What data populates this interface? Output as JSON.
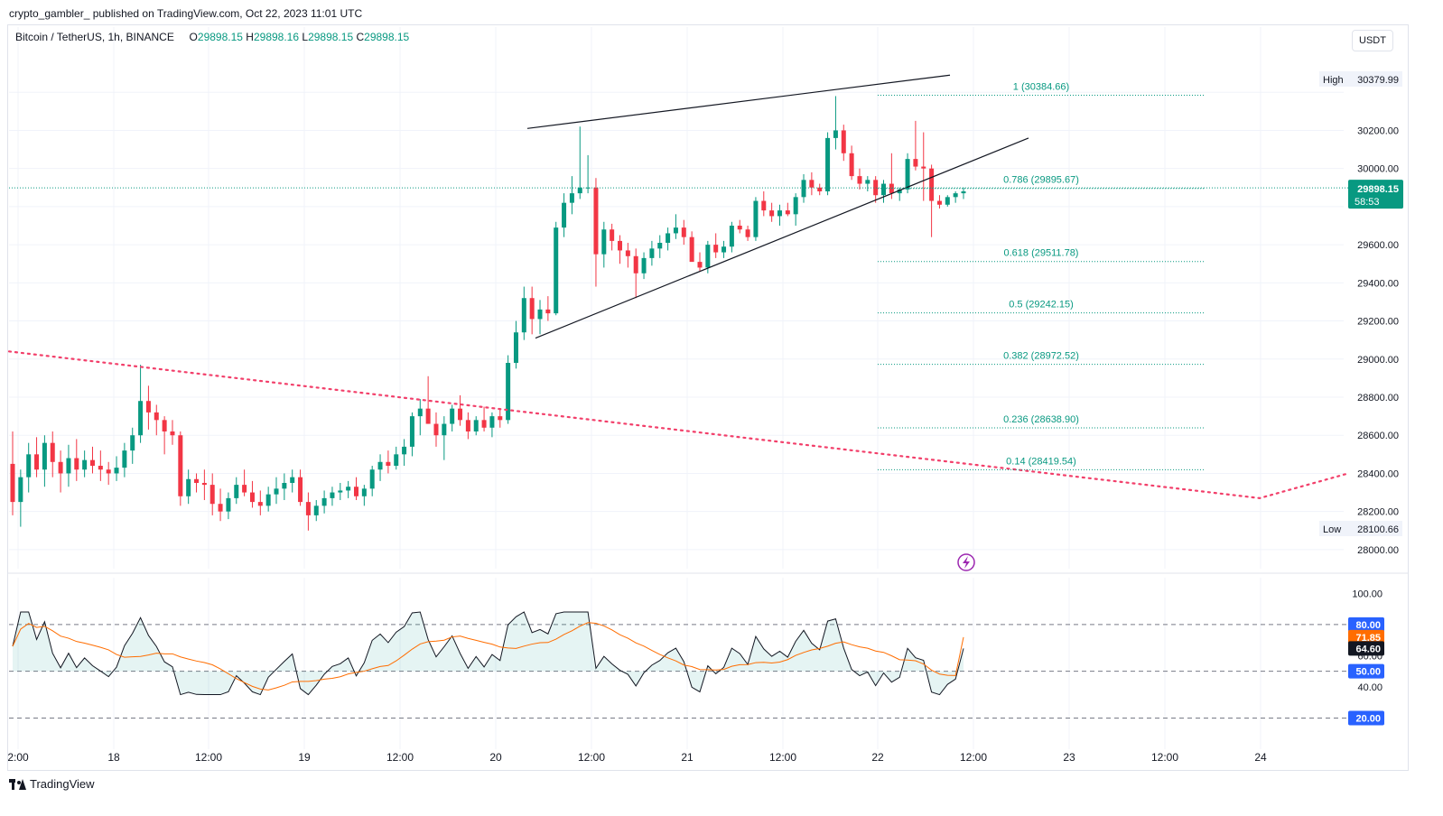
{
  "caption": "crypto_gambler_ published on TradingView.com, Oct 22, 2023 11:01 UTC",
  "symbol_text": "Bitcoin / TetherUS, 1h, BINANCE",
  "ohlc": {
    "o_label": "O",
    "o": "29898.15",
    "h_label": "H",
    "h": "29898.16",
    "l_label": "L",
    "l": "29898.15",
    "c_label": "C",
    "c": "29898.15"
  },
  "currency": "USDT",
  "footer_logo_text": "TradingView",
  "colors": {
    "up": "#089981",
    "down": "#f23645",
    "fib": "#089981",
    "rsi": "#131722",
    "rsi_ma": "#ff6d00",
    "dotted": "#f23f6a",
    "axis_text": "#131722",
    "grid": "#f0f3fa"
  },
  "chart_data": {
    "type": "candlestick",
    "price_axis": {
      "ylim": [
        27900,
        30600
      ],
      "ticks": [
        "28000.00",
        "28200.00",
        "28400.00",
        "28600.00",
        "28800.00",
        "29000.00",
        "29200.00",
        "29400.00",
        "29600.00",
        "30000.00",
        "30200.00"
      ]
    },
    "time_axis": {
      "labels": [
        "2:00",
        "18",
        "12:00",
        "19",
        "12:00",
        "20",
        "12:00",
        "21",
        "12:00",
        "22",
        "12:00",
        "23",
        "12:00",
        "24"
      ]
    },
    "high_label": {
      "label": "High",
      "value": "30379.99"
    },
    "low_label": {
      "label": "Low",
      "value": "28100.66"
    },
    "last_price": {
      "value": "29898.15",
      "countdown": "58:53"
    },
    "fibonacci": [
      {
        "label": "1 (30384.66)",
        "price": 30384.66
      },
      {
        "label": "0.786 (29895.67)",
        "price": 29895.67
      },
      {
        "label": "0.618 (29511.78)",
        "price": 29511.78
      },
      {
        "label": "0.5 (29242.15)",
        "price": 29242.15
      },
      {
        "label": "0.382 (28972.52)",
        "price": 28972.52
      },
      {
        "label": "0.236 (28638.90)",
        "price": 28638.9
      },
      {
        "label": "0.14 (28419.54)",
        "price": 28419.54
      }
    ],
    "candles_ohlc": [
      [
        28450,
        28620,
        28180,
        28250
      ],
      [
        28250,
        28420,
        28120,
        28380
      ],
      [
        28380,
        28560,
        28300,
        28500
      ],
      [
        28500,
        28590,
        28380,
        28420
      ],
      [
        28420,
        28600,
        28330,
        28560
      ],
      [
        28560,
        28620,
        28380,
        28460
      ],
      [
        28460,
        28520,
        28300,
        28400
      ],
      [
        28400,
        28550,
        28330,
        28480
      ],
      [
        28480,
        28580,
        28360,
        28420
      ],
      [
        28420,
        28520,
        28380,
        28470
      ],
      [
        28470,
        28540,
        28400,
        28440
      ],
      [
        28440,
        28520,
        28360,
        28420
      ],
      [
        28420,
        28460,
        28340,
        28400
      ],
      [
        28400,
        28490,
        28360,
        28430
      ],
      [
        28430,
        28560,
        28380,
        28520
      ],
      [
        28520,
        28640,
        28450,
        28600
      ],
      [
        28600,
        28970,
        28560,
        28780
      ],
      [
        28780,
        28860,
        28630,
        28720
      ],
      [
        28720,
        28760,
        28600,
        28680
      ],
      [
        28680,
        28700,
        28500,
        28620
      ],
      [
        28620,
        28680,
        28550,
        28600
      ],
      [
        28600,
        28620,
        28230,
        28280
      ],
      [
        28280,
        28420,
        28240,
        28370
      ],
      [
        28370,
        28400,
        28300,
        28350
      ],
      [
        28350,
        28420,
        28260,
        28340
      ],
      [
        28340,
        28400,
        28180,
        28240
      ],
      [
        28240,
        28320,
        28150,
        28200
      ],
      [
        28200,
        28300,
        28160,
        28270
      ],
      [
        28270,
        28380,
        28240,
        28340
      ],
      [
        28340,
        28420,
        28280,
        28300
      ],
      [
        28300,
        28360,
        28220,
        28250
      ],
      [
        28250,
        28310,
        28180,
        28230
      ],
      [
        28230,
        28330,
        28200,
        28290
      ],
      [
        28290,
        28380,
        28240,
        28320
      ],
      [
        28320,
        28400,
        28260,
        28350
      ],
      [
        28350,
        28420,
        28300,
        28380
      ],
      [
        28380,
        28420,
        28230,
        28250
      ],
      [
        28250,
        28300,
        28100,
        28180
      ],
      [
        28180,
        28260,
        28150,
        28230
      ],
      [
        28230,
        28310,
        28190,
        28270
      ],
      [
        28270,
        28330,
        28230,
        28300
      ],
      [
        28300,
        28350,
        28260,
        28310
      ],
      [
        28310,
        28360,
        28270,
        28330
      ],
      [
        28330,
        28380,
        28260,
        28280
      ],
      [
        28280,
        28340,
        28230,
        28320
      ],
      [
        28320,
        28440,
        28280,
        28420
      ],
      [
        28420,
        28500,
        28360,
        28460
      ],
      [
        28460,
        28520,
        28400,
        28440
      ],
      [
        28440,
        28540,
        28420,
        28500
      ],
      [
        28500,
        28580,
        28440,
        28540
      ],
      [
        28540,
        28720,
        28490,
        28700
      ],
      [
        28700,
        28790,
        28600,
        28740
      ],
      [
        28740,
        28910,
        28660,
        28660
      ],
      [
        28660,
        28720,
        28540,
        28600
      ],
      [
        28600,
        28700,
        28470,
        28660
      ],
      [
        28660,
        28760,
        28620,
        28740
      ],
      [
        28740,
        28810,
        28650,
        28680
      ],
      [
        28680,
        28720,
        28580,
        28620
      ],
      [
        28620,
        28700,
        28600,
        28680
      ],
      [
        28680,
        28750,
        28620,
        28640
      ],
      [
        28640,
        28720,
        28590,
        28700
      ],
      [
        28700,
        28740,
        28640,
        28680
      ],
      [
        28680,
        29020,
        28660,
        28980
      ],
      [
        28980,
        29200,
        28950,
        29140
      ],
      [
        29140,
        29380,
        29100,
        29320
      ],
      [
        29320,
        29380,
        29130,
        29210
      ],
      [
        29210,
        29310,
        29130,
        29260
      ],
      [
        29260,
        29330,
        29200,
        29240
      ],
      [
        29240,
        29720,
        29230,
        29690
      ],
      [
        29690,
        29870,
        29640,
        29820
      ],
      [
        29820,
        29960,
        29760,
        29870
      ],
      [
        29870,
        30220,
        29840,
        29900
      ],
      [
        29900,
        30070,
        29870,
        29900
      ],
      [
        29900,
        29950,
        29380,
        29550
      ],
      [
        29550,
        29720,
        29480,
        29680
      ],
      [
        29680,
        29710,
        29570,
        29620
      ],
      [
        29620,
        29650,
        29500,
        29570
      ],
      [
        29570,
        29610,
        29480,
        29540
      ],
      [
        29540,
        29580,
        29320,
        29450
      ],
      [
        29450,
        29560,
        29420,
        29530
      ],
      [
        29530,
        29620,
        29490,
        29580
      ],
      [
        29580,
        29650,
        29530,
        29610
      ],
      [
        29610,
        29690,
        29570,
        29660
      ],
      [
        29660,
        29760,
        29630,
        29690
      ],
      [
        29690,
        29730,
        29600,
        29640
      ],
      [
        29640,
        29670,
        29540,
        29510
      ],
      [
        29510,
        29560,
        29460,
        29480
      ],
      [
        29480,
        29620,
        29450,
        29600
      ],
      [
        29600,
        29660,
        29530,
        29560
      ],
      [
        29560,
        29620,
        29530,
        29590
      ],
      [
        29590,
        29720,
        29560,
        29700
      ],
      [
        29700,
        29730,
        29660,
        29680
      ],
      [
        29680,
        29700,
        29620,
        29640
      ],
      [
        29640,
        29850,
        29620,
        29830
      ],
      [
        29830,
        29880,
        29750,
        29780
      ],
      [
        29780,
        29820,
        29720,
        29750
      ],
      [
        29750,
        29810,
        29700,
        29780
      ],
      [
        29780,
        29820,
        29750,
        29760
      ],
      [
        29760,
        29870,
        29700,
        29850
      ],
      [
        29850,
        29970,
        29820,
        29940
      ],
      [
        29940,
        29980,
        29860,
        29900
      ],
      [
        29900,
        29920,
        29860,
        29880
      ],
      [
        29880,
        30190,
        29860,
        30160
      ],
      [
        30160,
        30380,
        30100,
        30200
      ],
      [
        30200,
        30230,
        30040,
        30080
      ],
      [
        30080,
        30120,
        29940,
        29960
      ],
      [
        29960,
        30000,
        29890,
        29920
      ],
      [
        29920,
        29960,
        29880,
        29940
      ],
      [
        29940,
        29960,
        29820,
        29860
      ],
      [
        29860,
        29940,
        29820,
        29920
      ],
      [
        29920,
        30080,
        29840,
        29870
      ],
      [
        29870,
        29900,
        29830,
        29890
      ],
      [
        29890,
        30080,
        29870,
        30050
      ],
      [
        30050,
        30250,
        29990,
        30010
      ],
      [
        30010,
        30190,
        29830,
        30000
      ],
      [
        30000,
        30020,
        29640,
        29830
      ],
      [
        29830,
        29860,
        29790,
        29810
      ],
      [
        29810,
        29860,
        29800,
        29850
      ],
      [
        29850,
        29880,
        29820,
        29870
      ],
      [
        29870,
        29900,
        29840,
        29880
      ]
    ],
    "rsi": {
      "ylim": [
        0,
        110
      ],
      "ticks": [
        "100.00",
        "60.00",
        "40.00"
      ],
      "bands": {
        "upper": "80.00",
        "middle": "50.00",
        "lower": "20.00"
      },
      "rsi_value": "64.60",
      "ma_value": "71.85"
    }
  }
}
